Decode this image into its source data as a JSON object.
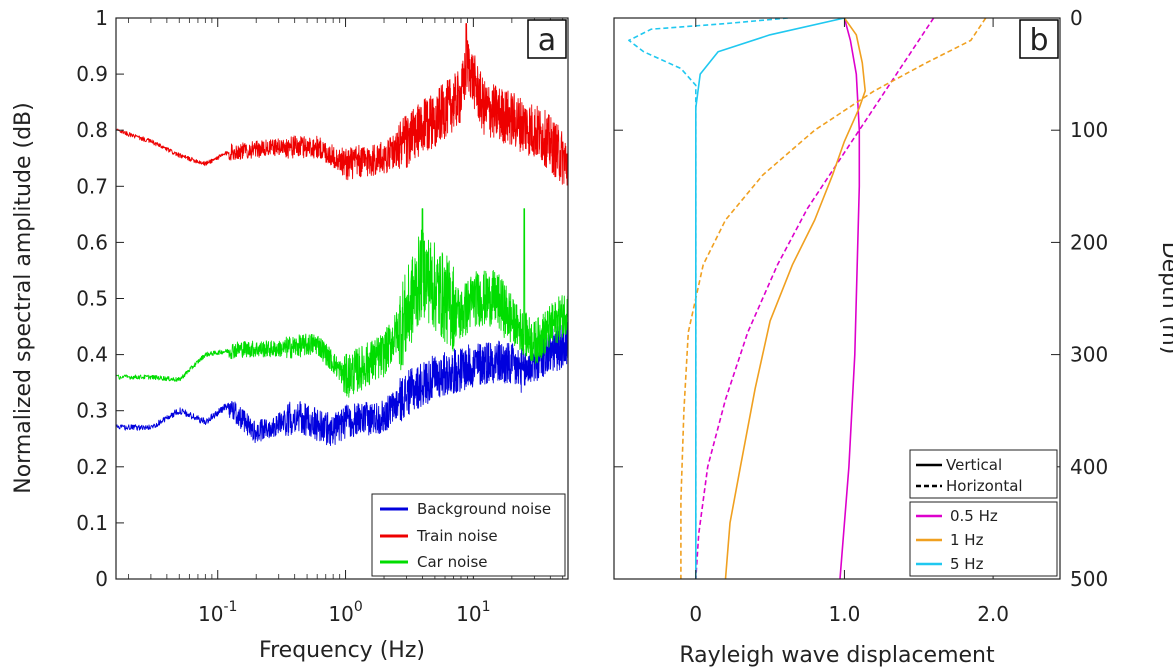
{
  "chart_data": [
    {
      "type": "line",
      "panel_tag": "a",
      "xlabel": "Frequency (Hz)",
      "ylabel": "Normalized spectral amplitude (dB)",
      "xscale": "log",
      "xlim": [
        0.016,
        55
      ],
      "ylim": [
        0,
        1
      ],
      "xtick_values": [
        0.1,
        1,
        10
      ],
      "xtick_labels": [
        {
          "base": "10",
          "exp": "-1"
        },
        {
          "base": "10",
          "exp": "0"
        },
        {
          "base": "10",
          "exp": "1"
        }
      ],
      "ytick_labels": [
        "0",
        "0.1",
        "0.2",
        "0.3",
        "0.4",
        "0.5",
        "0.6",
        "0.7",
        "0.8",
        "0.9",
        "1"
      ],
      "legend_position": "lower-right",
      "series": [
        {
          "name": "Background noise",
          "color": "#0000dd",
          "anchors": [
            [
              0.016,
              0.27
            ],
            [
              0.03,
              0.27
            ],
            [
              0.05,
              0.3
            ],
            [
              0.08,
              0.28
            ],
            [
              0.12,
              0.31
            ],
            [
              0.2,
              0.26
            ],
            [
              0.4,
              0.29
            ],
            [
              0.8,
              0.265
            ],
            [
              1.0,
              0.28
            ],
            [
              2.0,
              0.29
            ],
            [
              3.0,
              0.33
            ],
            [
              5.0,
              0.36
            ],
            [
              10,
              0.38
            ],
            [
              14,
              0.39
            ],
            [
              20,
              0.38
            ],
            [
              25,
              0.37
            ],
            [
              30,
              0.39
            ],
            [
              55,
              0.42
            ]
          ],
          "noise": [
            0.005,
            0.006,
            0.02,
            0.03,
            0.03,
            0.04,
            0.04,
            0.04
          ]
        },
        {
          "name": "Train noise",
          "color": "#ee0000",
          "anchors": [
            [
              0.016,
              0.8
            ],
            [
              0.03,
              0.78
            ],
            [
              0.05,
              0.755
            ],
            [
              0.08,
              0.74
            ],
            [
              0.12,
              0.76
            ],
            [
              0.3,
              0.77
            ],
            [
              0.6,
              0.77
            ],
            [
              1.0,
              0.74
            ],
            [
              2.0,
              0.75
            ],
            [
              3.0,
              0.78
            ],
            [
              5.0,
              0.82
            ],
            [
              8.0,
              0.86
            ],
            [
              9.0,
              0.92
            ],
            [
              12,
              0.84
            ],
            [
              20,
              0.82
            ],
            [
              35,
              0.79
            ],
            [
              55,
              0.74
            ]
          ],
          "noise": [
            0.004,
            0.004,
            0.015,
            0.02,
            0.03,
            0.05,
            0.05,
            0.05
          ],
          "peaks": [
            [
              8.8,
              0.99
            ]
          ]
        },
        {
          "name": "Car noise",
          "color": "#00dd00",
          "anchors": [
            [
              0.016,
              0.36
            ],
            [
              0.03,
              0.36
            ],
            [
              0.05,
              0.355
            ],
            [
              0.08,
              0.4
            ],
            [
              0.15,
              0.41
            ],
            [
              0.3,
              0.41
            ],
            [
              0.6,
              0.42
            ],
            [
              1.0,
              0.36
            ],
            [
              2.0,
              0.4
            ],
            [
              3.0,
              0.47
            ],
            [
              4.0,
              0.55
            ],
            [
              5.0,
              0.52
            ],
            [
              8.0,
              0.47
            ],
            [
              10,
              0.5
            ],
            [
              15,
              0.5
            ],
            [
              22,
              0.45
            ],
            [
              30,
              0.42
            ],
            [
              55,
              0.48
            ]
          ],
          "noise": [
            0.004,
            0.004,
            0.015,
            0.02,
            0.04,
            0.08,
            0.05,
            0.04
          ],
          "peaks": [
            [
              4.0,
              0.66
            ],
            [
              25,
              0.66
            ]
          ]
        }
      ]
    },
    {
      "type": "line",
      "panel_tag": "b",
      "xlabel": "Rayleigh wave displacement",
      "ylabel": "Depth (m)",
      "xlim": [
        -0.55,
        2.45
      ],
      "ylim": [
        500,
        0
      ],
      "y_axis_side": "right",
      "xtick_values": [
        0,
        1,
        2
      ],
      "xtick_labels": [
        "0",
        "1.0",
        "2.0"
      ],
      "ytick_values": [
        0,
        100,
        200,
        300,
        400,
        500
      ],
      "ytick_labels": [
        "0",
        "100",
        "200",
        "300",
        "400",
        "500"
      ],
      "legend_position": "lower-right",
      "legend_styles": [
        {
          "label": "Vertical",
          "dash": "solid"
        },
        {
          "label": "Horizontal",
          "dash": "dashed"
        }
      ],
      "series": [
        {
          "name": "0.5 Hz",
          "color": "#dd00cc",
          "component": "vertical",
          "points": [
            [
              1.0,
              0
            ],
            [
              1.04,
              20
            ],
            [
              1.08,
              50
            ],
            [
              1.1,
              100
            ],
            [
              1.1,
              150
            ],
            [
              1.09,
              200
            ],
            [
              1.07,
              300
            ],
            [
              1.03,
              400
            ],
            [
              0.97,
              500
            ]
          ]
        },
        {
          "name": "0.5 Hz",
          "color": "#dd00cc",
          "component": "horizontal",
          "points": [
            [
              1.6,
              0
            ],
            [
              1.45,
              30
            ],
            [
              1.25,
              70
            ],
            [
              1.0,
              120
            ],
            [
              0.75,
              170
            ],
            [
              0.55,
              220
            ],
            [
              0.35,
              280
            ],
            [
              0.2,
              340
            ],
            [
              0.08,
              400
            ],
            [
              0.02,
              460
            ],
            [
              0.0,
              500
            ]
          ]
        },
        {
          "name": "1 Hz",
          "color": "#f0a020",
          "component": "vertical",
          "points": [
            [
              1.0,
              0
            ],
            [
              1.08,
              15
            ],
            [
              1.12,
              40
            ],
            [
              1.14,
              65
            ],
            [
              1.1,
              80
            ],
            [
              1.0,
              110
            ],
            [
              0.92,
              140
            ],
            [
              0.8,
              180
            ],
            [
              0.65,
              220
            ],
            [
              0.5,
              270
            ],
            [
              0.4,
              330
            ],
            [
              0.3,
              400
            ],
            [
              0.23,
              450
            ],
            [
              0.2,
              500
            ]
          ]
        },
        {
          "name": "1 Hz",
          "color": "#f0a020",
          "component": "horizontal",
          "points": [
            [
              1.95,
              0
            ],
            [
              1.85,
              20
            ],
            [
              1.55,
              40
            ],
            [
              1.2,
              65
            ],
            [
              0.8,
              100
            ],
            [
              0.45,
              140
            ],
            [
              0.2,
              180
            ],
            [
              0.05,
              220
            ],
            [
              -0.05,
              280
            ],
            [
              -0.08,
              350
            ],
            [
              -0.1,
              430
            ],
            [
              -0.1,
              500
            ]
          ]
        },
        {
          "name": "5 Hz",
          "color": "#20c8f0",
          "component": "vertical",
          "points": [
            [
              1.0,
              0
            ],
            [
              0.5,
              15
            ],
            [
              0.15,
              30
            ],
            [
              0.03,
              50
            ],
            [
              0.0,
              80
            ],
            [
              0.0,
              150
            ],
            [
              0.0,
              300
            ],
            [
              0.0,
              500
            ]
          ]
        },
        {
          "name": "5 Hz",
          "color": "#20c8f0",
          "component": "horizontal",
          "points": [
            [
              0.62,
              0
            ],
            [
              0.2,
              5
            ],
            [
              -0.3,
              10
            ],
            [
              -0.45,
              20
            ],
            [
              -0.35,
              30
            ],
            [
              -0.1,
              45
            ],
            [
              0.0,
              60
            ],
            [
              0.0,
              500
            ]
          ]
        }
      ]
    }
  ]
}
